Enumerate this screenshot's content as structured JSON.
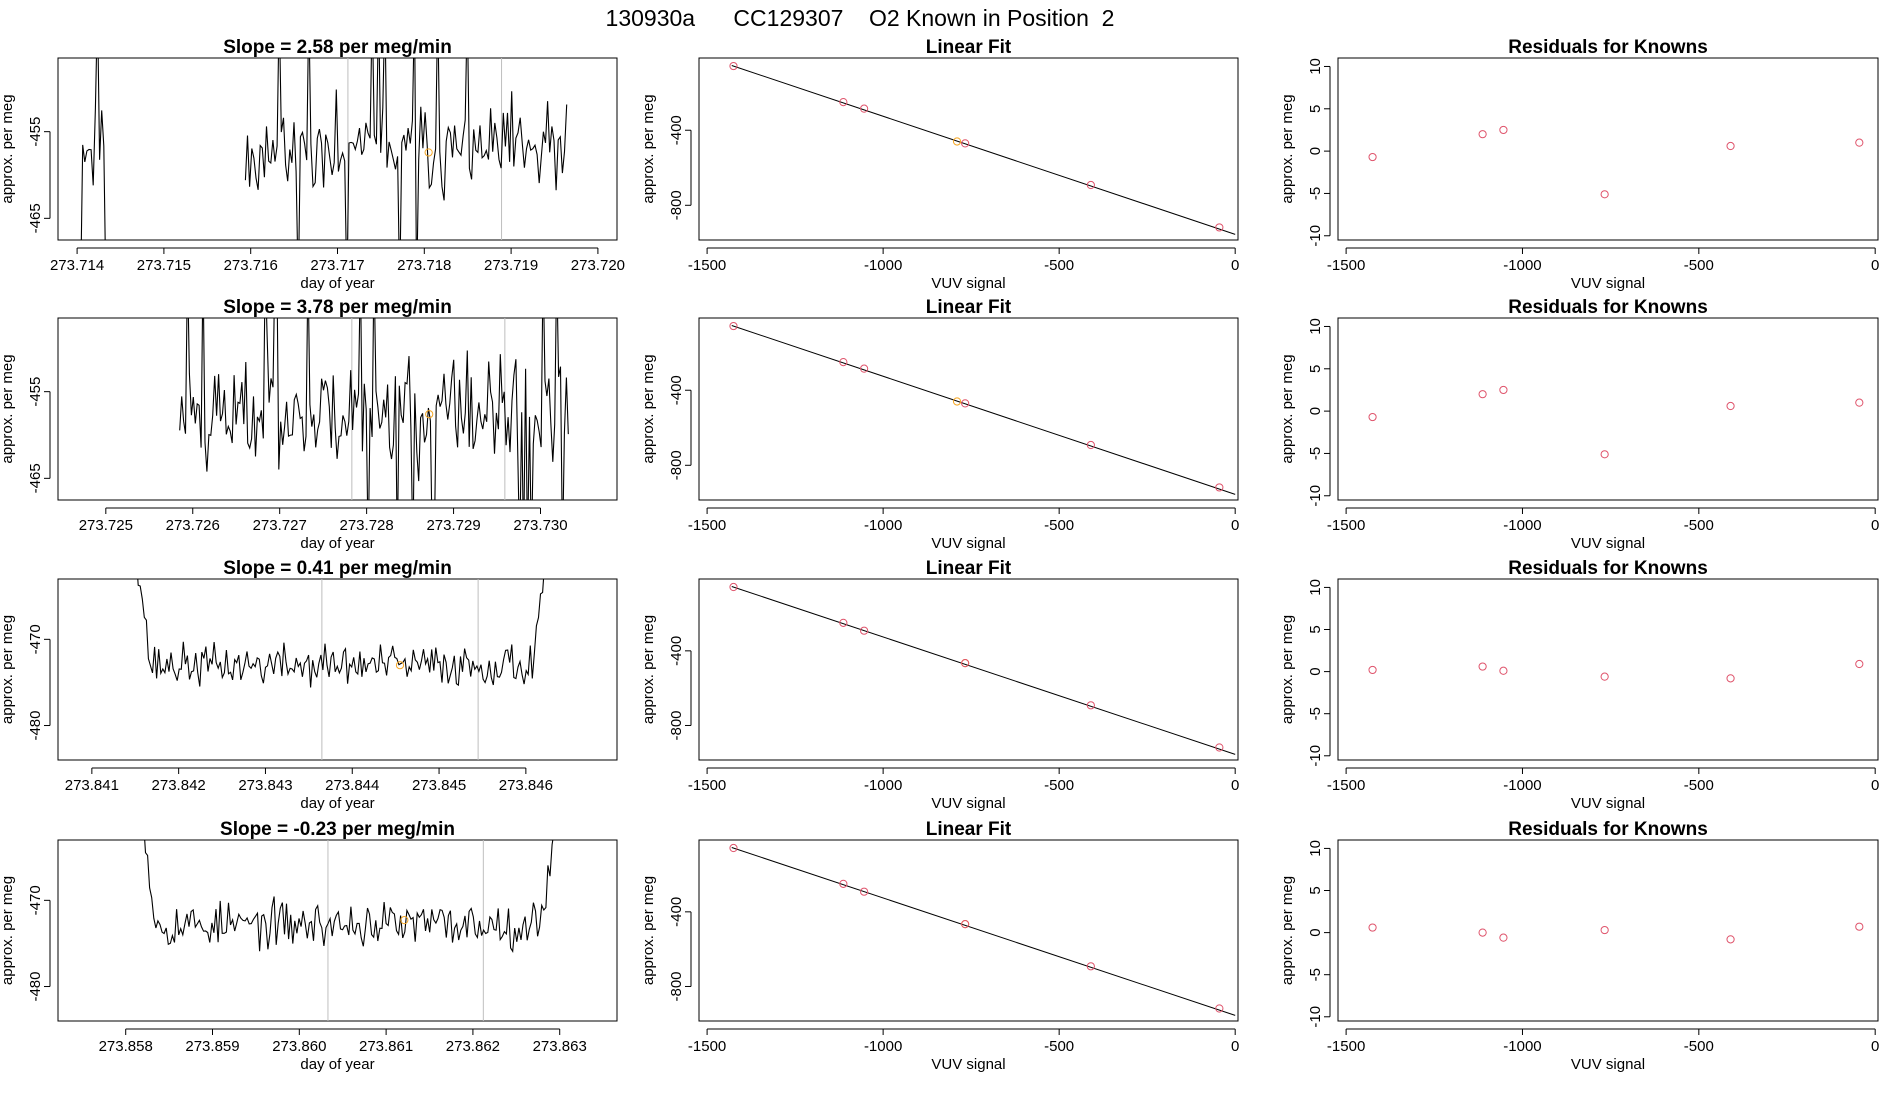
{
  "suptitle": "130930a      CC129307    O2 Known in Position  2",
  "colors": {
    "line": "#000000",
    "box": "#000000",
    "vline": "#bebebe",
    "point_red": "#df536b",
    "point_orange": "#f5a623"
  },
  "chart_data": [
    {
      "type": "line",
      "panel": "timeseries",
      "row": 1,
      "title": "Slope =  2.58  per meg/min",
      "xlabel": "day of year",
      "ylabel": "approx. per meg",
      "xlim": [
        273.71378,
        273.72022
      ],
      "ylim": [
        -467.5,
        -446.5
      ],
      "xticks": [
        273.714,
        273.715,
        273.716,
        273.717,
        273.718,
        273.719,
        273.72
      ],
      "xtick_labels": [
        "273.714",
        "273.715",
        "273.716",
        "273.717",
        "273.718",
        "273.719",
        "273.720"
      ],
      "yticks": [
        -465,
        -455
      ],
      "ytick_labels": [
        "-465",
        "-455"
      ],
      "vlines": [
        273.71712,
        273.71889
      ],
      "highlight_point": {
        "x": 273.71805,
        "y": -457.4
      },
      "trace": {
        "start": 273.71404,
        "end": 273.71964,
        "n": 230,
        "seed": 11,
        "base": -457.3,
        "noise": 2.6,
        "wild": 0.1,
        "gaps": [
          [
            273.71435,
            273.71592
          ]
        ]
      }
    },
    {
      "type": "scatter",
      "panel": "fit",
      "row": 1,
      "title": "Linear Fit",
      "xlabel": "VUV signal",
      "ylabel": "approx. per meg",
      "xlim": [
        -1523,
        8
      ],
      "ylim": [
        -985,
        -15
      ],
      "xticks": [
        -1500,
        -1000,
        -500,
        0
      ],
      "xtick_labels": [
        "-1500",
        "-1000",
        "-500",
        "0"
      ],
      "yticks": [
        -800,
        -400
      ],
      "ytick_labels": [
        "-800",
        "-400"
      ],
      "fit_line": {
        "x": [
          -1430,
          0
        ],
        "y": [
          -55,
          -955
        ]
      },
      "points": {
        "x": [
          -1425,
          -1113,
          -1054,
          -790,
          -767,
          -410,
          -45
        ],
        "y": [
          -58,
          -250,
          -285,
          -460,
          -470,
          -692,
          -918
        ]
      },
      "highlight_index": 3
    },
    {
      "type": "scatter",
      "panel": "residuals",
      "row": 1,
      "title": "Residuals for Knowns",
      "xlabel": "VUV signal",
      "ylabel": "approx. per meg",
      "xlim": [
        -1523,
        8
      ],
      "ylim": [
        -10.5,
        11
      ],
      "xticks": [
        -1500,
        -1000,
        -500,
        0
      ],
      "xtick_labels": [
        "-1500",
        "-1000",
        "-500",
        "0"
      ],
      "yticks": [
        -10,
        -5,
        0,
        5,
        10
      ],
      "ytick_labels": [
        "-10",
        "-5",
        "0",
        "5",
        "10"
      ],
      "points": {
        "x": [
          -1425,
          -1113,
          -1054,
          -767,
          -410,
          -45
        ],
        "y": [
          -0.7,
          2.0,
          2.5,
          -5.1,
          0.6,
          1.0
        ]
      }
    },
    {
      "type": "line",
      "panel": "timeseries",
      "row": 2,
      "title": "Slope =  3.78  per meg/min",
      "xlabel": "day of year",
      "ylabel": "approx. per meg",
      "xlim": [
        273.72445,
        273.73088
      ],
      "ylim": [
        -467.5,
        -446.5
      ],
      "xticks": [
        273.725,
        273.726,
        273.727,
        273.728,
        273.729,
        273.73
      ],
      "xtick_labels": [
        "273.725",
        "273.726",
        "273.727",
        "273.728",
        "273.729",
        "273.730"
      ],
      "vlines": [
        273.72783,
        273.72959
      ],
      "yticks": [
        -465,
        -455
      ],
      "ytick_labels": [
        "-465",
        "-455"
      ],
      "highlight_point": {
        "x": 273.72872,
        "y": -457.6
      },
      "trace": {
        "start": 273.72585,
        "end": 273.73032,
        "n": 200,
        "seed": 23,
        "base": -457.4,
        "noise": 3.2,
        "wild": 0.07,
        "gaps": []
      }
    },
    {
      "type": "scatter",
      "panel": "fit",
      "row": 2,
      "title": "Linear Fit",
      "xlabel": "VUV signal",
      "ylabel": "approx. per meg",
      "xlim": [
        -1523,
        8
      ],
      "ylim": [
        -985,
        -15
      ],
      "xticks": [
        -1500,
        -1000,
        -500,
        0
      ],
      "xtick_labels": [
        "-1500",
        "-1000",
        "-500",
        "0"
      ],
      "yticks": [
        -800,
        -400
      ],
      "ytick_labels": [
        "-800",
        "-400"
      ],
      "fit_line": {
        "x": [
          -1430,
          0
        ],
        "y": [
          -55,
          -955
        ]
      },
      "points": {
        "x": [
          -1425,
          -1113,
          -1054,
          -790,
          -767,
          -410,
          -45
        ],
        "y": [
          -58,
          -250,
          -285,
          -460,
          -470,
          -692,
          -918
        ]
      },
      "highlight_index": 3
    },
    {
      "type": "scatter",
      "panel": "residuals",
      "row": 2,
      "title": "Residuals for Knowns",
      "xlabel": "VUV signal",
      "ylabel": "approx. per meg",
      "xlim": [
        -1523,
        8
      ],
      "ylim": [
        -10.5,
        11
      ],
      "xticks": [
        -1500,
        -1000,
        -500,
        0
      ],
      "xtick_labels": [
        "-1500",
        "-1000",
        "-500",
        "0"
      ],
      "yticks": [
        -10,
        -5,
        0,
        5,
        10
      ],
      "ytick_labels": [
        "-10",
        "-5",
        "0",
        "5",
        "10"
      ],
      "points": {
        "x": [
          -1425,
          -1113,
          -1054,
          -767,
          -410,
          -45
        ],
        "y": [
          -0.7,
          2.0,
          2.5,
          -5.1,
          0.6,
          1.0
        ]
      }
    },
    {
      "type": "line",
      "panel": "timeseries",
      "row": 3,
      "title": "Slope =  0.41  per meg/min",
      "xlabel": "day of year",
      "ylabel": "approx. per meg",
      "xlim": [
        273.84061,
        273.84705
      ],
      "ylim": [
        -484,
        -463
      ],
      "xticks": [
        273.841,
        273.842,
        273.843,
        273.844,
        273.845,
        273.846
      ],
      "xtick_labels": [
        "273.841",
        "273.842",
        "273.843",
        "273.844",
        "273.845",
        "273.846"
      ],
      "yticks": [
        -480,
        -470
      ],
      "ytick_labels": [
        "-480",
        "-470"
      ],
      "vlines": [
        273.84365,
        273.84545
      ],
      "highlight_point": {
        "x": 273.84455,
        "y": -473.0
      },
      "trace": {
        "start": 273.84151,
        "end": 273.84624,
        "n": 200,
        "seed": 37,
        "base": -473.0,
        "noise": 1.2,
        "wild": 0,
        "gaps": [],
        "ends": true
      }
    },
    {
      "type": "scatter",
      "panel": "fit",
      "row": 3,
      "title": "Linear Fit",
      "xlabel": "VUV signal",
      "ylabel": "approx. per meg",
      "xlim": [
        -1523,
        8
      ],
      "ylim": [
        -985,
        -15
      ],
      "xticks": [
        -1500,
        -1000,
        -500,
        0
      ],
      "xtick_labels": [
        "-1500",
        "-1000",
        "-500",
        "0"
      ],
      "yticks": [
        -800,
        -400
      ],
      "ytick_labels": [
        "-800",
        "-400"
      ],
      "fit_line": {
        "x": [
          -1430,
          0
        ],
        "y": [
          -55,
          -955
        ]
      },
      "points": {
        "x": [
          -1425,
          -1113,
          -1054,
          -767,
          -767,
          -410,
          -45
        ],
        "y": [
          -58,
          -250,
          -292,
          -466,
          -466,
          -692,
          -918
        ]
      },
      "highlight_index": 3
    },
    {
      "type": "scatter",
      "panel": "residuals",
      "row": 3,
      "title": "Residuals for Knowns",
      "xlabel": "VUV signal",
      "ylabel": "approx. per meg",
      "xlim": [
        -1523,
        8
      ],
      "ylim": [
        -10.5,
        11
      ],
      "xticks": [
        -1500,
        -1000,
        -500,
        0
      ],
      "xtick_labels": [
        "-1500",
        "-1000",
        "-500",
        "0"
      ],
      "yticks": [
        -10,
        -5,
        0,
        5,
        10
      ],
      "ytick_labels": [
        "-10",
        "-5",
        "0",
        "5",
        "10"
      ],
      "points": {
        "x": [
          -1425,
          -1113,
          -1054,
          -767,
          -410,
          -45
        ],
        "y": [
          0.2,
          0.6,
          0.1,
          -0.6,
          -0.8,
          0.9
        ]
      }
    },
    {
      "type": "line",
      "panel": "timeseries",
      "row": 4,
      "title": "Slope =  -0.23  per meg/min",
      "xlabel": "day of year",
      "ylabel": "approx. per meg",
      "xlim": [
        273.85722,
        273.86366
      ],
      "ylim": [
        -484,
        -463
      ],
      "xticks": [
        273.858,
        273.859,
        273.86,
        273.861,
        273.862,
        273.863
      ],
      "xtick_labels": [
        "273.858",
        "273.859",
        "273.860",
        "273.861",
        "273.862",
        "273.863"
      ],
      "yticks": [
        -480,
        -470
      ],
      "ytick_labels": [
        "-480",
        "-470"
      ],
      "vlines": [
        273.86033,
        273.86212
      ],
      "highlight_point": {
        "x": 273.86121,
        "y": -472.3
      },
      "trace": {
        "start": 273.85818,
        "end": 273.86296,
        "n": 200,
        "seed": 53,
        "base": -472.8,
        "noise": 1.3,
        "wild": 0,
        "gaps": [],
        "ends": true
      }
    },
    {
      "type": "scatter",
      "panel": "fit",
      "row": 4,
      "title": "Linear Fit",
      "xlabel": "VUV signal",
      "ylabel": "approx. per meg",
      "xlim": [
        -1523,
        8
      ],
      "ylim": [
        -985,
        -15
      ],
      "xticks": [
        -1500,
        -1000,
        -500,
        0
      ],
      "xtick_labels": [
        "-1500",
        "-1000",
        "-500",
        "0"
      ],
      "yticks": [
        -800,
        -400
      ],
      "ytick_labels": [
        "-800",
        "-400"
      ],
      "fit_line": {
        "x": [
          -1430,
          0
        ],
        "y": [
          -55,
          -955
        ]
      },
      "points": {
        "x": [
          -1425,
          -1113,
          -1054,
          -767,
          -767,
          -410,
          -45
        ],
        "y": [
          -58,
          -250,
          -292,
          -466,
          -466,
          -692,
          -918
        ]
      },
      "highlight_index": 3
    },
    {
      "type": "scatter",
      "panel": "residuals",
      "row": 4,
      "title": "Residuals for Knowns",
      "xlabel": "VUV signal",
      "ylabel": "approx. per meg",
      "xlim": [
        -1523,
        8
      ],
      "ylim": [
        -10.5,
        11
      ],
      "xticks": [
        -1500,
        -1000,
        -500,
        0
      ],
      "xtick_labels": [
        "-1500",
        "-1000",
        "-500",
        "0"
      ],
      "yticks": [
        -10,
        -5,
        0,
        5,
        10
      ],
      "ytick_labels": [
        "-10",
        "-5",
        "0",
        "5",
        "10"
      ],
      "points": {
        "x": [
          -1425,
          -1113,
          -1054,
          -767,
          -410,
          -45
        ],
        "y": [
          0.6,
          0.0,
          -0.6,
          0.3,
          -0.8,
          0.7
        ]
      }
    }
  ]
}
